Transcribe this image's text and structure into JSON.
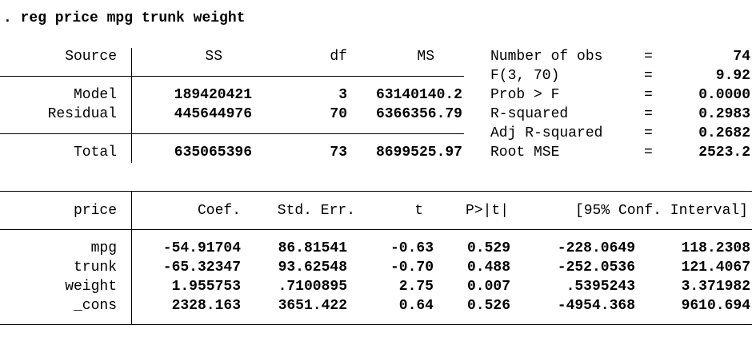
{
  "command": ". reg price mpg trunk weight",
  "anova": {
    "headers": {
      "source": "Source",
      "ss": "SS",
      "df": "df",
      "ms": "MS"
    },
    "rows": [
      {
        "source": "Model",
        "ss": "189420421",
        "df": "3",
        "ms": "63140140.2"
      },
      {
        "source": "Residual",
        "ss": "445644976",
        "df": "70",
        "ms": "6366356.79"
      }
    ],
    "total": {
      "source": "Total",
      "ss": "635065396",
      "df": "73",
      "ms": "8699525.97"
    }
  },
  "stats": [
    {
      "label": "Number of obs",
      "eq": "=",
      "value": "74"
    },
    {
      "label": "F(3, 70)",
      "eq": "=",
      "value": "9.92"
    },
    {
      "label": "Prob > F",
      "eq": "=",
      "value": "0.0000"
    },
    {
      "label": "R-squared",
      "eq": "=",
      "value": "0.2983"
    },
    {
      "label": "Adj R-squared",
      "eq": "=",
      "value": "0.2682"
    },
    {
      "label": "Root MSE",
      "eq": "=",
      "value": "2523.2"
    }
  ],
  "coef": {
    "headers": {
      "var": "price",
      "coef": "Coef.",
      "se": "Std. Err.",
      "t": "t",
      "p": "P>|t|",
      "ci": "[95% Conf. Interval]"
    },
    "rows": [
      {
        "var": "mpg",
        "coef": "-54.91704",
        "se": "86.81541",
        "t": "-0.63",
        "p": "0.529",
        "lo": "-228.0649",
        "hi": "118.2308"
      },
      {
        "var": "trunk",
        "coef": "-65.32347",
        "se": "93.62548",
        "t": "-0.70",
        "p": "0.488",
        "lo": "-252.0536",
        "hi": "121.4067"
      },
      {
        "var": "weight",
        "coef": "1.955753",
        "se": ".7100895",
        "t": "2.75",
        "p": "0.007",
        "lo": ".5395243",
        "hi": "3.371982"
      },
      {
        "var": "_cons",
        "coef": "2328.163",
        "se": "3651.422",
        "t": "0.64",
        "p": "0.526",
        "lo": "-4954.368",
        "hi": "9610.694"
      }
    ]
  }
}
